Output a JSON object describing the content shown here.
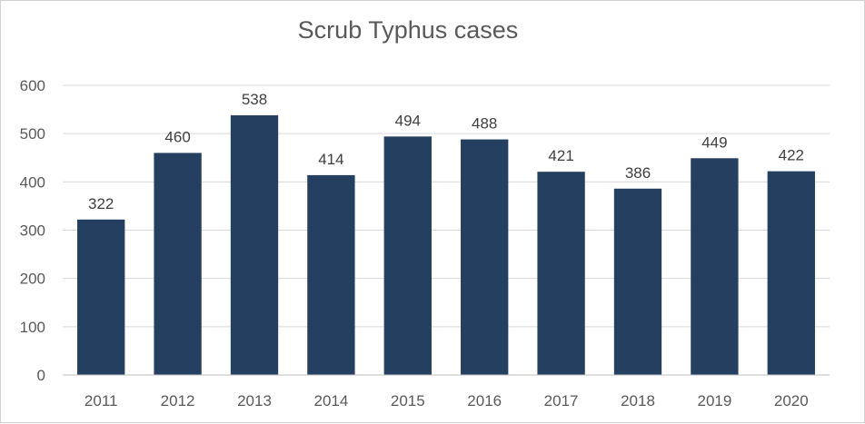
{
  "chart_data": {
    "type": "bar",
    "title": "Scrub Typhus cases",
    "categories": [
      "2011",
      "2012",
      "2013",
      "2014",
      "2015",
      "2016",
      "2017",
      "2018",
      "2019",
      "2020"
    ],
    "values": [
      322,
      460,
      538,
      414,
      494,
      488,
      421,
      386,
      449,
      422
    ],
    "ylim": [
      0,
      600
    ],
    "yticks": [
      0,
      100,
      200,
      300,
      400,
      500,
      600
    ],
    "xlabel": "",
    "ylabel": "",
    "grid": true,
    "bar_color": "#243f60",
    "data_labels": true
  }
}
